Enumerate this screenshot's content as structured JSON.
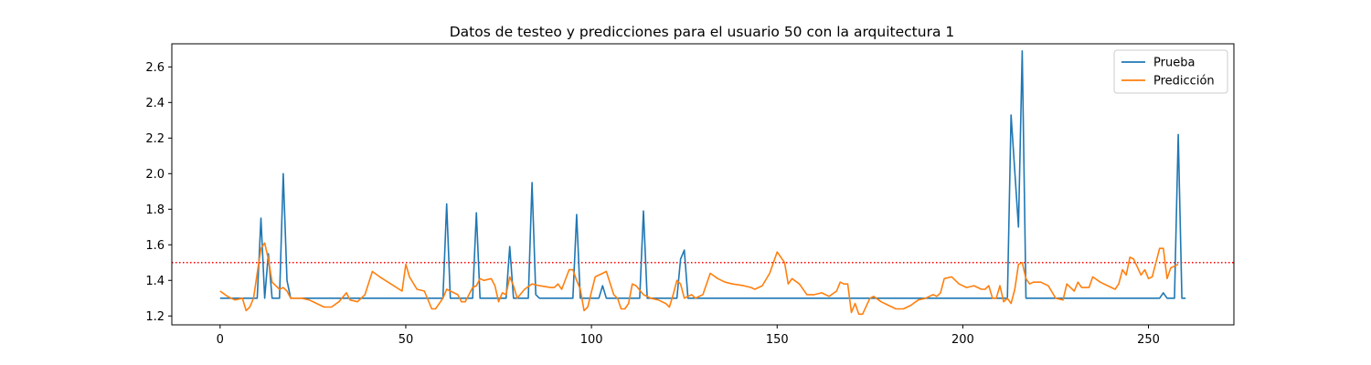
{
  "chart_data": {
    "type": "line",
    "title": "Datos de testeo y predicciones para el usuario 50 con la arquitectura 1",
    "xlabel": "",
    "ylabel": "",
    "xlim": [
      -13,
      273
    ],
    "ylim": [
      1.15,
      2.73
    ],
    "xticks": [
      0,
      50,
      100,
      150,
      200,
      250
    ],
    "yticks": [
      1.2,
      1.4,
      1.6,
      1.8,
      2.0,
      2.2,
      2.4,
      2.6
    ],
    "grid": false,
    "legend": {
      "placement": "upper right"
    },
    "threshold": {
      "y": 1.5,
      "style": "dotted",
      "color": "#ff0000"
    },
    "colors": {
      "Prueba": "#1f77b4",
      "Predicción": "#ff7f0e"
    },
    "series": [
      {
        "name": "Prueba",
        "points": [
          [
            0,
            1.3
          ],
          [
            10,
            1.3
          ],
          [
            11,
            1.75
          ],
          [
            12,
            1.3
          ],
          [
            13,
            1.55
          ],
          [
            14,
            1.3
          ],
          [
            16,
            1.3
          ],
          [
            17,
            2.0
          ],
          [
            18,
            1.4
          ],
          [
            19,
            1.3
          ],
          [
            60,
            1.3
          ],
          [
            61,
            1.83
          ],
          [
            62,
            1.3
          ],
          [
            68,
            1.3
          ],
          [
            69,
            1.78
          ],
          [
            70,
            1.3
          ],
          [
            77,
            1.3
          ],
          [
            78,
            1.59
          ],
          [
            79,
            1.3
          ],
          [
            83,
            1.3
          ],
          [
            84,
            1.95
          ],
          [
            85,
            1.32
          ],
          [
            86,
            1.3
          ],
          [
            95,
            1.3
          ],
          [
            96,
            1.77
          ],
          [
            97,
            1.3
          ],
          [
            102,
            1.3
          ],
          [
            103,
            1.37
          ],
          [
            104,
            1.3
          ],
          [
            113,
            1.3
          ],
          [
            114,
            1.79
          ],
          [
            115,
            1.3
          ],
          [
            123,
            1.3
          ],
          [
            124,
            1.52
          ],
          [
            125,
            1.57
          ],
          [
            126,
            1.3
          ],
          [
            212,
            1.3
          ],
          [
            213,
            2.33
          ],
          [
            215,
            1.7
          ],
          [
            216,
            2.69
          ],
          [
            217,
            1.3
          ],
          [
            253,
            1.3
          ],
          [
            254,
            1.33
          ],
          [
            255,
            1.3
          ],
          [
            257,
            1.3
          ],
          [
            258,
            2.22
          ],
          [
            259,
            1.3
          ],
          [
            260,
            1.3
          ]
        ]
      },
      {
        "name": "Predicción",
        "points": [
          [
            0,
            1.34
          ],
          [
            2,
            1.31
          ],
          [
            4,
            1.29
          ],
          [
            6,
            1.3
          ],
          [
            7,
            1.23
          ],
          [
            8,
            1.25
          ],
          [
            9,
            1.3
          ],
          [
            10,
            1.44
          ],
          [
            11,
            1.58
          ],
          [
            12,
            1.61
          ],
          [
            13,
            1.52
          ],
          [
            14,
            1.39
          ],
          [
            16,
            1.35
          ],
          [
            17,
            1.36
          ],
          [
            18,
            1.34
          ],
          [
            19,
            1.3
          ],
          [
            22,
            1.3
          ],
          [
            24,
            1.29
          ],
          [
            26,
            1.27
          ],
          [
            28,
            1.25
          ],
          [
            30,
            1.25
          ],
          [
            32,
            1.28
          ],
          [
            34,
            1.33
          ],
          [
            35,
            1.29
          ],
          [
            37,
            1.28
          ],
          [
            39,
            1.32
          ],
          [
            41,
            1.45
          ],
          [
            43,
            1.42
          ],
          [
            46,
            1.38
          ],
          [
            49,
            1.34
          ],
          [
            50,
            1.49
          ],
          [
            51,
            1.42
          ],
          [
            53,
            1.35
          ],
          [
            55,
            1.34
          ],
          [
            57,
            1.24
          ],
          [
            58,
            1.24
          ],
          [
            60,
            1.3
          ],
          [
            61,
            1.35
          ],
          [
            64,
            1.32
          ],
          [
            65,
            1.28
          ],
          [
            66,
            1.28
          ],
          [
            68,
            1.36
          ],
          [
            69,
            1.37
          ],
          [
            70,
            1.41
          ],
          [
            71,
            1.4
          ],
          [
            73,
            1.41
          ],
          [
            74,
            1.37
          ],
          [
            75,
            1.28
          ],
          [
            76,
            1.33
          ],
          [
            77,
            1.32
          ],
          [
            78,
            1.42
          ],
          [
            79,
            1.37
          ],
          [
            80,
            1.3
          ],
          [
            82,
            1.35
          ],
          [
            84,
            1.38
          ],
          [
            86,
            1.37
          ],
          [
            89,
            1.36
          ],
          [
            90,
            1.36
          ],
          [
            91,
            1.38
          ],
          [
            92,
            1.35
          ],
          [
            94,
            1.46
          ],
          [
            95,
            1.46
          ],
          [
            96,
            1.4
          ],
          [
            97,
            1.35
          ],
          [
            98,
            1.23
          ],
          [
            99,
            1.25
          ],
          [
            101,
            1.42
          ],
          [
            103,
            1.44
          ],
          [
            104,
            1.45
          ],
          [
            106,
            1.32
          ],
          [
            107,
            1.3
          ],
          [
            108,
            1.24
          ],
          [
            109,
            1.24
          ],
          [
            110,
            1.27
          ],
          [
            111,
            1.38
          ],
          [
            112,
            1.37
          ],
          [
            114,
            1.32
          ],
          [
            116,
            1.3
          ],
          [
            118,
            1.29
          ],
          [
            120,
            1.27
          ],
          [
            121,
            1.25
          ],
          [
            122,
            1.32
          ],
          [
            123,
            1.4
          ],
          [
            124,
            1.38
          ],
          [
            125,
            1.3
          ],
          [
            126,
            1.31
          ],
          [
            127,
            1.32
          ],
          [
            128,
            1.3
          ],
          [
            130,
            1.32
          ],
          [
            132,
            1.44
          ],
          [
            134,
            1.41
          ],
          [
            136,
            1.39
          ],
          [
            138,
            1.38
          ],
          [
            141,
            1.37
          ],
          [
            143,
            1.36
          ],
          [
            144,
            1.35
          ],
          [
            146,
            1.37
          ],
          [
            148,
            1.44
          ],
          [
            150,
            1.56
          ],
          [
            152,
            1.5
          ],
          [
            153,
            1.38
          ],
          [
            154,
            1.41
          ],
          [
            156,
            1.38
          ],
          [
            158,
            1.32
          ],
          [
            160,
            1.32
          ],
          [
            162,
            1.33
          ],
          [
            164,
            1.31
          ],
          [
            166,
            1.34
          ],
          [
            167,
            1.39
          ],
          [
            168,
            1.38
          ],
          [
            169,
            1.38
          ],
          [
            170,
            1.22
          ],
          [
            171,
            1.27
          ],
          [
            172,
            1.21
          ],
          [
            173,
            1.21
          ],
          [
            175,
            1.3
          ],
          [
            176,
            1.31
          ],
          [
            178,
            1.28
          ],
          [
            180,
            1.26
          ],
          [
            182,
            1.24
          ],
          [
            184,
            1.24
          ],
          [
            186,
            1.26
          ],
          [
            188,
            1.29
          ],
          [
            190,
            1.3
          ],
          [
            192,
            1.32
          ],
          [
            193,
            1.31
          ],
          [
            194,
            1.33
          ],
          [
            195,
            1.41
          ],
          [
            197,
            1.42
          ],
          [
            198,
            1.4
          ],
          [
            199,
            1.38
          ],
          [
            201,
            1.36
          ],
          [
            203,
            1.37
          ],
          [
            205,
            1.35
          ],
          [
            206,
            1.35
          ],
          [
            207,
            1.37
          ],
          [
            208,
            1.3
          ],
          [
            209,
            1.3
          ],
          [
            210,
            1.37
          ],
          [
            211,
            1.28
          ],
          [
            212,
            1.3
          ],
          [
            213,
            1.27
          ],
          [
            214,
            1.35
          ],
          [
            215,
            1.49
          ],
          [
            216,
            1.5
          ],
          [
            217,
            1.41
          ],
          [
            218,
            1.38
          ],
          [
            219,
            1.39
          ],
          [
            221,
            1.39
          ],
          [
            223,
            1.37
          ],
          [
            225,
            1.3
          ],
          [
            227,
            1.29
          ],
          [
            228,
            1.38
          ],
          [
            229,
            1.36
          ],
          [
            230,
            1.34
          ],
          [
            231,
            1.39
          ],
          [
            232,
            1.36
          ],
          [
            234,
            1.36
          ],
          [
            235,
            1.42
          ],
          [
            237,
            1.39
          ],
          [
            239,
            1.37
          ],
          [
            241,
            1.35
          ],
          [
            242,
            1.38
          ],
          [
            243,
            1.46
          ],
          [
            244,
            1.43
          ],
          [
            245,
            1.53
          ],
          [
            246,
            1.52
          ],
          [
            248,
            1.43
          ],
          [
            249,
            1.46
          ],
          [
            250,
            1.41
          ],
          [
            251,
            1.42
          ],
          [
            252,
            1.5
          ],
          [
            253,
            1.58
          ],
          [
            254,
            1.58
          ],
          [
            255,
            1.41
          ],
          [
            256,
            1.47
          ],
          [
            258,
            1.49
          ]
        ]
      }
    ]
  }
}
